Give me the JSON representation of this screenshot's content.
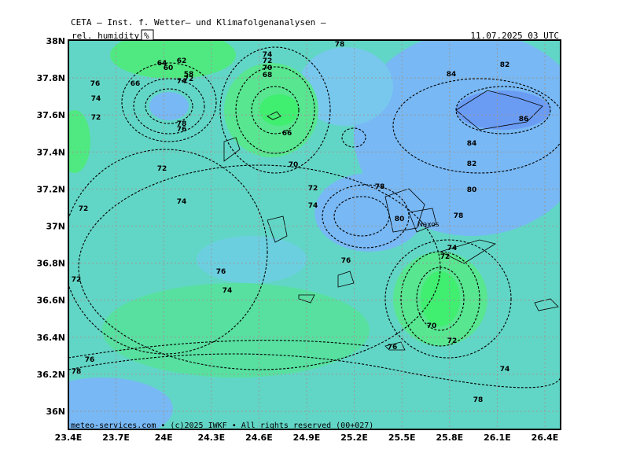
{
  "header": {
    "title": "CETA — Inst. f. Wetter— und Klimafolgenanalysen —",
    "parameter": "rel. humidity",
    "unit": "%",
    "valid_time": "11.07.2025 03 UTC"
  },
  "footer": "meteo-services.com • (c)2025 IWKF • All rights reserved (00+027)",
  "lon_labels": [
    "23.4E",
    "23.7E",
    "24E",
    "24.3E",
    "24.6E",
    "24.9E",
    "25.2E",
    "25.5E",
    "25.8E",
    "26.1E",
    "26.4E"
  ],
  "lat_labels": [
    "38N",
    "37.8N",
    "37.6N",
    "37.4N",
    "37.2N",
    "37N",
    "36.8N",
    "36.6N",
    "36.4N",
    "36.2N",
    "36N"
  ],
  "places": [
    "Naxos"
  ],
  "contour_labels": [
    "76",
    "74",
    "72",
    "66",
    "64",
    "62",
    "60",
    "58",
    "72",
    "74",
    "78",
    "76",
    "72",
    "74",
    "72",
    "70",
    "68",
    "66",
    "70",
    "72",
    "74",
    "78",
    "84",
    "82",
    "86",
    "84",
    "82",
    "80",
    "78",
    "80",
    "78",
    "74",
    "72",
    "76",
    "72",
    "74",
    "72",
    "76",
    "74",
    "70",
    "72",
    "76",
    "76",
    "78",
    "74",
    "78"
  ]
}
